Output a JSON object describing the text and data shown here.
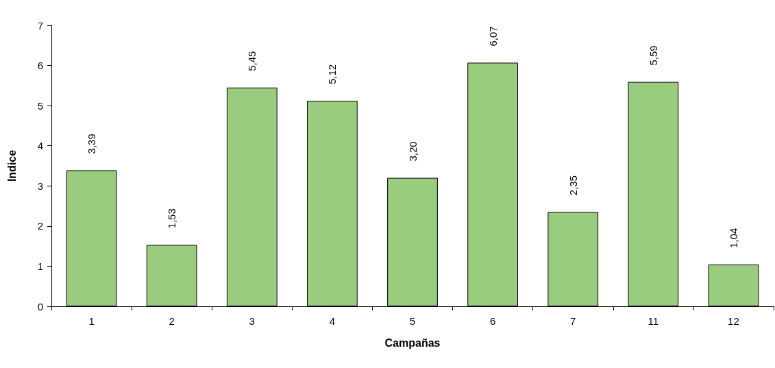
{
  "chart_data": {
    "type": "bar",
    "xlabel": "Campañas",
    "ylabel": "Indice",
    "categories": [
      "1",
      "2",
      "3",
      "4",
      "5",
      "6",
      "7",
      "11",
      "12"
    ],
    "values": [
      3.39,
      1.53,
      5.45,
      5.12,
      3.2,
      6.07,
      2.35,
      5.59,
      1.04
    ],
    "value_labels": [
      "3,39",
      "1,53",
      "5,45",
      "5,12",
      "3,20",
      "6,07",
      "2,35",
      "5,59",
      "1,04"
    ],
    "color": "#99cc7e",
    "ylim": [
      0,
      7
    ],
    "yticks": [
      0,
      1,
      2,
      3,
      4,
      5,
      6,
      7
    ],
    "grid": false
  }
}
